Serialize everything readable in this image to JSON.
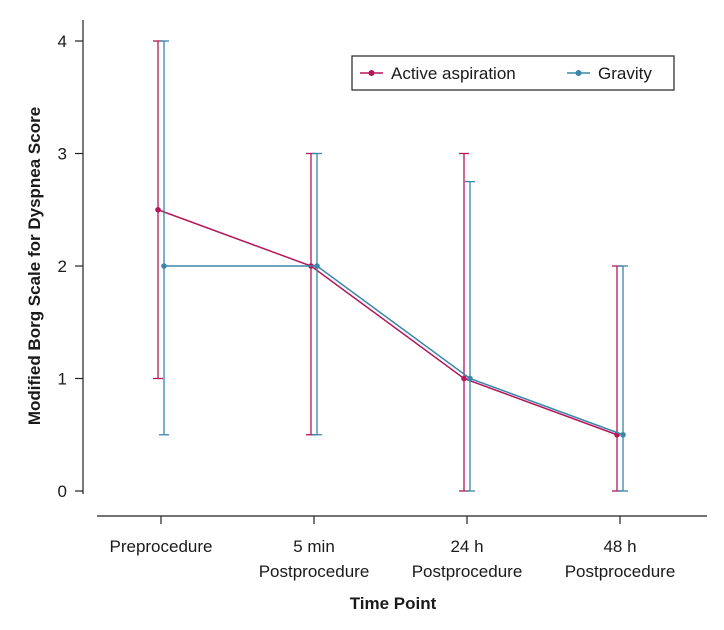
{
  "chart_data": {
    "type": "line",
    "title": "",
    "xlabel": "Time Point",
    "ylabel": "Modified Borg Scale for Dyspnea Score",
    "categories": [
      [
        "Preprocedure"
      ],
      [
        "5 min",
        "Postprocedure"
      ],
      [
        "24 h",
        "Postprocedure"
      ],
      [
        "48 h",
        "Postprocedure"
      ]
    ],
    "ylim": [
      0,
      4
    ],
    "yticks": [
      "0",
      "1",
      "2",
      "3",
      "4"
    ],
    "grid": false,
    "legend_position": "top-right",
    "series": [
      {
        "name": "Active aspiration",
        "color": "#b5175a",
        "values": [
          2.5,
          2,
          1,
          0.5
        ],
        "error_low": [
          1,
          0.5,
          0,
          0
        ],
        "error_high": [
          4,
          3,
          3,
          2
        ]
      },
      {
        "name": "Gravity",
        "color": "#3a87a8",
        "values": [
          2,
          2,
          1,
          0.5
        ],
        "error_low": [
          0.5,
          0.5,
          0,
          0
        ],
        "error_high": [
          4,
          3,
          2.75,
          2
        ]
      }
    ]
  }
}
